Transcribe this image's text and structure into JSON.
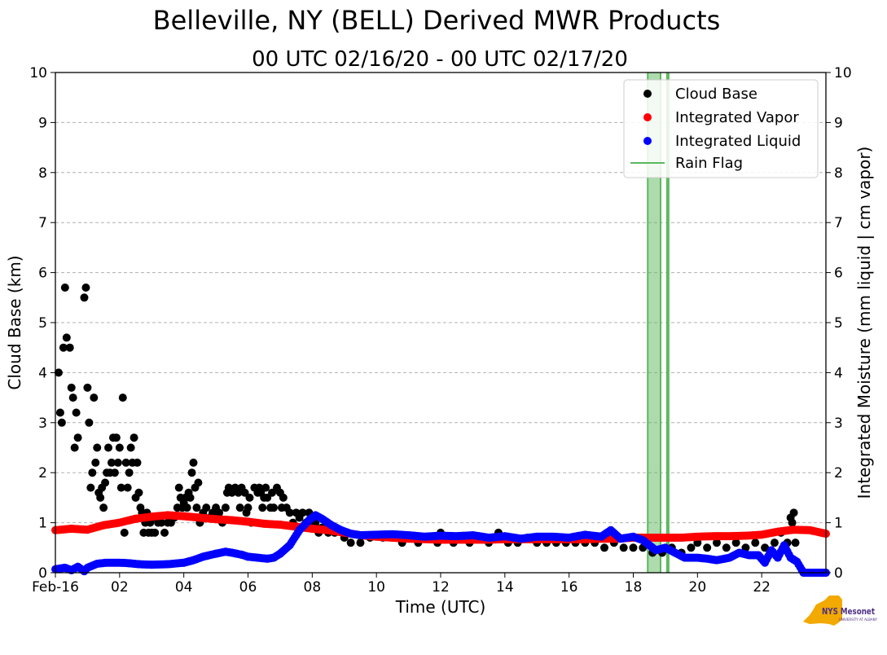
{
  "chart_data": {
    "type": "scatter",
    "title": "Belleville, NY (BELL) Derived MWR Products",
    "subtitle": "00 UTC 02/16/20 - 00 UTC 02/17/20",
    "xlabel": "Time (UTC)",
    "ylabel": "Cloud Base (km)",
    "ylabel_right": "Integrated Moisture (mm liquid | cm vapor)",
    "xlim": [
      0,
      24
    ],
    "ylim": [
      0,
      10
    ],
    "x_ticks": [
      {
        "value": 0,
        "label": "Feb-16"
      },
      {
        "value": 2,
        "label": "02"
      },
      {
        "value": 4,
        "label": "04"
      },
      {
        "value": 6,
        "label": "06"
      },
      {
        "value": 8,
        "label": "08"
      },
      {
        "value": 10,
        "label": "10"
      },
      {
        "value": 12,
        "label": "12"
      },
      {
        "value": 14,
        "label": "14"
      },
      {
        "value": 16,
        "label": "16"
      },
      {
        "value": 18,
        "label": "18"
      },
      {
        "value": 20,
        "label": "20"
      },
      {
        "value": 22,
        "label": "22"
      }
    ],
    "y_ticks": [
      0,
      1,
      2,
      3,
      4,
      5,
      6,
      7,
      8,
      9,
      10
    ],
    "grid": "horizontal-dashed",
    "legend_position": "top-right",
    "legend": [
      {
        "label": "Cloud Base",
        "color": "#000000",
        "kind": "marker"
      },
      {
        "label": "Integrated Vapor",
        "color": "#ff0000",
        "kind": "marker"
      },
      {
        "label": "Integrated Liquid",
        "color": "#0000ff",
        "kind": "marker"
      },
      {
        "label": "Rain Flag",
        "color": "#5cb85c",
        "kind": "line"
      }
    ],
    "rain_flag_periods": [
      [
        18.45,
        18.85
      ],
      [
        19.05,
        19.1
      ]
    ],
    "cloud_base": {
      "name": "Cloud Base",
      "color": "#000000",
      "points": [
        [
          0.1,
          4.0
        ],
        [
          0.15,
          3.2
        ],
        [
          0.2,
          3.0
        ],
        [
          0.25,
          4.5
        ],
        [
          0.3,
          5.7
        ],
        [
          0.35,
          4.7
        ],
        [
          0.45,
          4.5
        ],
        [
          0.5,
          3.7
        ],
        [
          0.55,
          3.5
        ],
        [
          0.6,
          2.5
        ],
        [
          0.65,
          3.2
        ],
        [
          0.7,
          2.7
        ],
        [
          0.9,
          5.5
        ],
        [
          0.95,
          5.7
        ],
        [
          1.0,
          3.7
        ],
        [
          1.05,
          3.0
        ],
        [
          1.1,
          1.7
        ],
        [
          1.15,
          2.0
        ],
        [
          1.2,
          3.5
        ],
        [
          1.25,
          2.2
        ],
        [
          1.3,
          2.5
        ],
        [
          1.35,
          1.6
        ],
        [
          1.4,
          1.5
        ],
        [
          1.45,
          1.7
        ],
        [
          1.5,
          1.3
        ],
        [
          1.55,
          1.8
        ],
        [
          1.6,
          2.0
        ],
        [
          1.65,
          2.5
        ],
        [
          1.7,
          2.0
        ],
        [
          1.75,
          2.2
        ],
        [
          1.8,
          2.7
        ],
        [
          1.85,
          2.0
        ],
        [
          1.9,
          2.7
        ],
        [
          1.95,
          2.2
        ],
        [
          2.0,
          2.5
        ],
        [
          2.05,
          1.7
        ],
        [
          2.1,
          3.5
        ],
        [
          2.15,
          0.8
        ],
        [
          2.2,
          2.2
        ],
        [
          2.25,
          1.7
        ],
        [
          2.3,
          2.0
        ],
        [
          2.35,
          2.5
        ],
        [
          2.4,
          2.2
        ],
        [
          2.45,
          2.7
        ],
        [
          2.5,
          1.5
        ],
        [
          2.55,
          2.2
        ],
        [
          2.6,
          1.6
        ],
        [
          2.65,
          1.3
        ],
        [
          2.7,
          1.2
        ],
        [
          2.75,
          0.8
        ],
        [
          2.8,
          1.0
        ],
        [
          2.85,
          1.2
        ],
        [
          2.9,
          0.8
        ],
        [
          2.95,
          1.0
        ],
        [
          3.0,
          0.8
        ],
        [
          3.05,
          1.1
        ],
        [
          3.1,
          0.8
        ],
        [
          3.2,
          1.0
        ],
        [
          3.3,
          1.0
        ],
        [
          3.4,
          0.8
        ],
        [
          3.5,
          1.0
        ],
        [
          3.6,
          1.0
        ],
        [
          3.7,
          1.1
        ],
        [
          3.8,
          1.3
        ],
        [
          3.85,
          1.7
        ],
        [
          3.9,
          1.5
        ],
        [
          3.95,
          1.3
        ],
        [
          4.0,
          1.4
        ],
        [
          4.05,
          1.5
        ],
        [
          4.1,
          1.3
        ],
        [
          4.15,
          1.6
        ],
        [
          4.2,
          1.5
        ],
        [
          4.25,
          2.0
        ],
        [
          4.3,
          2.2
        ],
        [
          4.35,
          1.7
        ],
        [
          4.4,
          1.3
        ],
        [
          4.45,
          1.8
        ],
        [
          4.5,
          1.0
        ],
        [
          4.6,
          1.2
        ],
        [
          4.7,
          1.3
        ],
        [
          4.8,
          1.1
        ],
        [
          4.9,
          1.2
        ],
        [
          5.0,
          1.3
        ],
        [
          5.1,
          1.2
        ],
        [
          5.2,
          1.0
        ],
        [
          5.3,
          1.3
        ],
        [
          5.35,
          1.6
        ],
        [
          5.4,
          1.7
        ],
        [
          5.5,
          1.6
        ],
        [
          5.6,
          1.7
        ],
        [
          5.7,
          1.6
        ],
        [
          5.75,
          1.3
        ],
        [
          5.8,
          1.7
        ],
        [
          5.9,
          1.6
        ],
        [
          5.95,
          1.2
        ],
        [
          6.0,
          1.3
        ],
        [
          6.05,
          1.5
        ],
        [
          6.1,
          1.0
        ],
        [
          6.2,
          1.7
        ],
        [
          6.3,
          1.6
        ],
        [
          6.35,
          1.7
        ],
        [
          6.4,
          1.6
        ],
        [
          6.45,
          1.3
        ],
        [
          6.5,
          1.5
        ],
        [
          6.55,
          1.7
        ],
        [
          6.6,
          1.5
        ],
        [
          6.7,
          1.3
        ],
        [
          6.75,
          1.6
        ],
        [
          6.8,
          1.3
        ],
        [
          6.9,
          1.7
        ],
        [
          7.0,
          1.6
        ],
        [
          7.05,
          1.3
        ],
        [
          7.1,
          1.5
        ],
        [
          7.2,
          1.3
        ],
        [
          7.3,
          1.2
        ],
        [
          7.4,
          1.0
        ],
        [
          7.5,
          1.2
        ],
        [
          7.6,
          1.1
        ],
        [
          7.7,
          1.2
        ],
        [
          7.8,
          1.0
        ],
        [
          7.9,
          1.2
        ],
        [
          8.0,
          0.9
        ],
        [
          8.1,
          1.0
        ],
        [
          8.2,
          0.8
        ],
        [
          8.3,
          0.9
        ],
        [
          8.5,
          0.8
        ],
        [
          8.7,
          0.8
        ],
        [
          9.0,
          0.7
        ],
        [
          9.2,
          0.6
        ],
        [
          9.5,
          0.6
        ],
        [
          9.8,
          0.7
        ],
        [
          10.2,
          0.7
        ],
        [
          10.5,
          0.7
        ],
        [
          10.8,
          0.6
        ],
        [
          11.0,
          0.7
        ],
        [
          11.3,
          0.6
        ],
        [
          11.6,
          0.7
        ],
        [
          11.9,
          0.6
        ],
        [
          12.0,
          0.8
        ],
        [
          12.2,
          0.7
        ],
        [
          12.4,
          0.6
        ],
        [
          12.6,
          0.7
        ],
        [
          12.9,
          0.6
        ],
        [
          13.2,
          0.7
        ],
        [
          13.5,
          0.6
        ],
        [
          13.8,
          0.8
        ],
        [
          14.1,
          0.6
        ],
        [
          14.4,
          0.6
        ],
        [
          14.7,
          0.7
        ],
        [
          15.0,
          0.6
        ],
        [
          15.3,
          0.6
        ],
        [
          15.6,
          0.6
        ],
        [
          15.9,
          0.6
        ],
        [
          16.2,
          0.6
        ],
        [
          16.5,
          0.6
        ],
        [
          16.8,
          0.6
        ],
        [
          17.1,
          0.5
        ],
        [
          17.4,
          0.6
        ],
        [
          17.7,
          0.5
        ],
        [
          18.0,
          0.5
        ],
        [
          18.3,
          0.5
        ],
        [
          18.6,
          0.4
        ],
        [
          18.9,
          0.4
        ],
        [
          19.2,
          0.5
        ],
        [
          19.5,
          0.4
        ],
        [
          19.8,
          0.5
        ],
        [
          20.0,
          0.6
        ],
        [
          20.3,
          0.5
        ],
        [
          20.6,
          0.6
        ],
        [
          20.9,
          0.5
        ],
        [
          21.2,
          0.6
        ],
        [
          21.5,
          0.5
        ],
        [
          21.8,
          0.6
        ],
        [
          22.1,
          0.5
        ],
        [
          22.4,
          0.6
        ],
        [
          22.6,
          0.8
        ],
        [
          22.8,
          0.6
        ],
        [
          22.9,
          1.1
        ],
        [
          22.95,
          1.0
        ],
        [
          23.0,
          1.2
        ],
        [
          23.05,
          0.6
        ]
      ]
    },
    "integrated_vapor": {
      "name": "Integrated Vapor",
      "color": "#ff0000",
      "points": [
        [
          0.0,
          0.85
        ],
        [
          0.5,
          0.88
        ],
        [
          1.0,
          0.86
        ],
        [
          1.5,
          0.95
        ],
        [
          2.0,
          1.0
        ],
        [
          2.5,
          1.08
        ],
        [
          3.0,
          1.12
        ],
        [
          3.5,
          1.15
        ],
        [
          4.0,
          1.13
        ],
        [
          4.5,
          1.1
        ],
        [
          5.0,
          1.07
        ],
        [
          5.5,
          1.05
        ],
        [
          6.0,
          1.02
        ],
        [
          6.5,
          0.98
        ],
        [
          7.0,
          0.96
        ],
        [
          7.5,
          0.92
        ],
        [
          8.0,
          0.88
        ],
        [
          8.5,
          0.85
        ],
        [
          9.0,
          0.8
        ],
        [
          9.5,
          0.75
        ],
        [
          10.0,
          0.72
        ],
        [
          10.5,
          0.7
        ],
        [
          11.0,
          0.68
        ],
        [
          11.5,
          0.67
        ],
        [
          12.0,
          0.66
        ],
        [
          12.5,
          0.66
        ],
        [
          13.0,
          0.66
        ],
        [
          13.5,
          0.66
        ],
        [
          14.0,
          0.67
        ],
        [
          14.5,
          0.67
        ],
        [
          15.0,
          0.67
        ],
        [
          15.5,
          0.67
        ],
        [
          16.0,
          0.67
        ],
        [
          16.5,
          0.67
        ],
        [
          17.0,
          0.68
        ],
        [
          17.5,
          0.68
        ],
        [
          18.0,
          0.7
        ],
        [
          18.5,
          0.7
        ],
        [
          19.0,
          0.7
        ],
        [
          19.5,
          0.7
        ],
        [
          20.0,
          0.72
        ],
        [
          20.5,
          0.73
        ],
        [
          21.0,
          0.73
        ],
        [
          21.5,
          0.74
        ],
        [
          22.0,
          0.76
        ],
        [
          22.5,
          0.82
        ],
        [
          23.0,
          0.86
        ],
        [
          23.5,
          0.85
        ],
        [
          24.0,
          0.78
        ]
      ]
    },
    "integrated_liquid": {
      "name": "Integrated Liquid",
      "color": "#0000ff",
      "points": [
        [
          0.0,
          0.07
        ],
        [
          0.3,
          0.1
        ],
        [
          0.5,
          0.05
        ],
        [
          0.7,
          0.12
        ],
        [
          0.9,
          0.03
        ],
        [
          1.0,
          0.1
        ],
        [
          1.3,
          0.18
        ],
        [
          1.6,
          0.2
        ],
        [
          2.0,
          0.2
        ],
        [
          2.3,
          0.19
        ],
        [
          2.6,
          0.17
        ],
        [
          3.0,
          0.16
        ],
        [
          3.5,
          0.17
        ],
        [
          4.0,
          0.2
        ],
        [
          4.3,
          0.25
        ],
        [
          4.6,
          0.32
        ],
        [
          5.0,
          0.38
        ],
        [
          5.3,
          0.42
        ],
        [
          5.5,
          0.4
        ],
        [
          5.8,
          0.36
        ],
        [
          6.0,
          0.32
        ],
        [
          6.3,
          0.3
        ],
        [
          6.6,
          0.28
        ],
        [
          6.8,
          0.3
        ],
        [
          7.0,
          0.38
        ],
        [
          7.3,
          0.55
        ],
        [
          7.6,
          0.85
        ],
        [
          7.9,
          1.05
        ],
        [
          8.1,
          1.15
        ],
        [
          8.3,
          1.08
        ],
        [
          8.6,
          0.95
        ],
        [
          8.9,
          0.85
        ],
        [
          9.2,
          0.78
        ],
        [
          9.5,
          0.75
        ],
        [
          10.0,
          0.76
        ],
        [
          10.5,
          0.77
        ],
        [
          11.0,
          0.75
        ],
        [
          11.5,
          0.72
        ],
        [
          12.0,
          0.74
        ],
        [
          12.5,
          0.73
        ],
        [
          13.0,
          0.75
        ],
        [
          13.5,
          0.7
        ],
        [
          14.0,
          0.73
        ],
        [
          14.5,
          0.68
        ],
        [
          15.0,
          0.72
        ],
        [
          15.5,
          0.72
        ],
        [
          16.0,
          0.7
        ],
        [
          16.5,
          0.76
        ],
        [
          17.0,
          0.72
        ],
        [
          17.3,
          0.85
        ],
        [
          17.6,
          0.68
        ],
        [
          18.0,
          0.72
        ],
        [
          18.3,
          0.65
        ],
        [
          18.7,
          0.45
        ],
        [
          19.0,
          0.5
        ],
        [
          19.3,
          0.4
        ],
        [
          19.6,
          0.3
        ],
        [
          20.0,
          0.3
        ],
        [
          20.3,
          0.28
        ],
        [
          20.6,
          0.25
        ],
        [
          21.0,
          0.3
        ],
        [
          21.3,
          0.4
        ],
        [
          21.6,
          0.35
        ],
        [
          21.9,
          0.35
        ],
        [
          22.1,
          0.2
        ],
        [
          22.3,
          0.45
        ],
        [
          22.5,
          0.3
        ],
        [
          22.7,
          0.55
        ],
        [
          22.9,
          0.3
        ],
        [
          23.1,
          0.22
        ],
        [
          23.3,
          0.0
        ],
        [
          23.6,
          0.0
        ],
        [
          24.0,
          0.0
        ]
      ]
    }
  },
  "logo": {
    "text": "NYS Mesonet",
    "subtext": "UNIVERSITY AT ALBANY",
    "color": "#4b2e83",
    "shape_color": "#f2a900"
  }
}
